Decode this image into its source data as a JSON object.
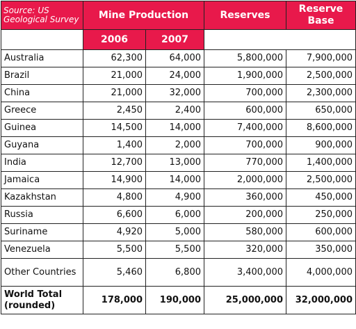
{
  "chart_data": {
    "type": "table",
    "source": "Source: US Geological Survey",
    "headers": {
      "mine_production": "Mine Production",
      "reserves": "Reserves",
      "reserve_base": "Reserve Base",
      "year1": "2006",
      "year2": "2007"
    },
    "rows": [
      {
        "country": "Australia",
        "y2006": "62,300",
        "y2007": "64,000",
        "reserves": "5,800,000",
        "reserve_base": "7,900,000"
      },
      {
        "country": "Brazil",
        "y2006": "21,000",
        "y2007": "24,000",
        "reserves": "1,900,000",
        "reserve_base": "2,500,000"
      },
      {
        "country": "China",
        "y2006": "21,000",
        "y2007": "32,000",
        "reserves": "700,000",
        "reserve_base": "2,300,000"
      },
      {
        "country": "Greece",
        "y2006": "2,450",
        "y2007": "2,400",
        "reserves": "600,000",
        "reserve_base": "650,000"
      },
      {
        "country": "Guinea",
        "y2006": "14,500",
        "y2007": "14,000",
        "reserves": "7,400,000",
        "reserve_base": "8,600,000"
      },
      {
        "country": "Guyana",
        "y2006": "1,400",
        "y2007": "2,000",
        "reserves": "700,000",
        "reserve_base": "900,000"
      },
      {
        "country": "India",
        "y2006": "12,700",
        "y2007": "13,000",
        "reserves": "770,000",
        "reserve_base": "1,400,000"
      },
      {
        "country": "Jamaica",
        "y2006": "14,900",
        "y2007": "14,000",
        "reserves": "2,000,000",
        "reserve_base": "2,500,000"
      },
      {
        "country": "Kazakhstan",
        "y2006": "4,800",
        "y2007": "4,900",
        "reserves": "360,000",
        "reserve_base": "450,000"
      },
      {
        "country": "Russia",
        "y2006": "6,600",
        "y2007": "6,000",
        "reserves": "200,000",
        "reserve_base": "250,000"
      },
      {
        "country": "Suriname",
        "y2006": "4,920",
        "y2007": "5,000",
        "reserves": "580,000",
        "reserve_base": "600,000"
      },
      {
        "country": "Venezuela",
        "y2006": "5,500",
        "y2007": "5,500",
        "reserves": "320,000",
        "reserve_base": "350,000"
      },
      {
        "country": "Other Countries",
        "y2006": "5,460",
        "y2007": "6,800",
        "reserves": "3,400,000",
        "reserve_base": "4,000,000"
      }
    ],
    "total": {
      "country": "World Total (rounded)",
      "y2006": "178,000",
      "y2007": "190,000",
      "reserves": "25,000,000",
      "reserve_base": "32,000,000"
    }
  },
  "colors": {
    "header_bg": "#e8194b",
    "header_text": "#ffffff",
    "border": "#222222"
  }
}
